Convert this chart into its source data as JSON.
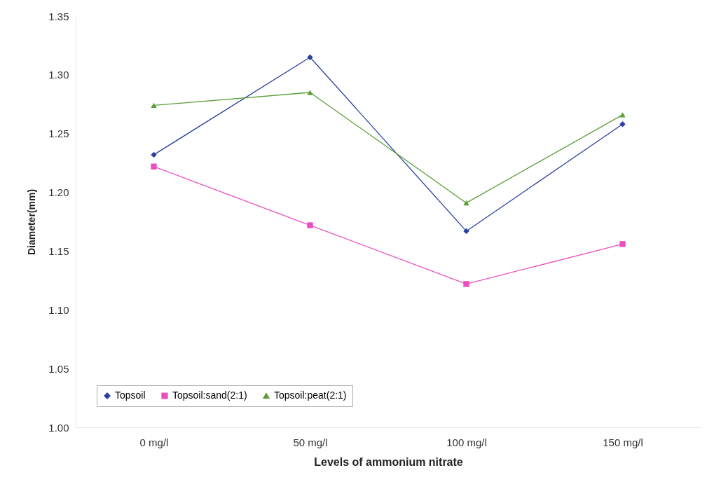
{
  "chart_data": {
    "type": "line",
    "xlabel": "Levels of ammonium nitrate",
    "ylabel": "Diameter(mm)",
    "categories": [
      "0 mg/l",
      "50 mg/l",
      "100 mg/l",
      "150 mg/l"
    ],
    "series": [
      {
        "name": "Topsoil",
        "color": "#2b3f9e",
        "marker": "diamond",
        "values": [
          1.232,
          1.315,
          1.167,
          1.258
        ]
      },
      {
        "name": "Topsoil:sand(2:1)",
        "color": "#e84fbf",
        "marker": "square",
        "values": [
          1.222,
          1.172,
          1.122,
          1.156
        ]
      },
      {
        "name": "Topsoil:peat(2:1)",
        "color": "#5c9e3a",
        "marker": "triangle",
        "values": [
          1.274,
          1.285,
          1.191,
          1.266
        ]
      }
    ],
    "ylim": [
      1.0,
      1.35
    ],
    "yticks": [
      {
        "value": 1.0,
        "label": "1.00"
      },
      1.05,
      {
        "value": 1.1,
        "label": "1.10"
      },
      1.15,
      {
        "value": 1.2,
        "label": "1.20"
      },
      1.25,
      {
        "value": 1.3,
        "label": "1.30"
      },
      1.35
    ],
    "grid": false,
    "legend": "bottom left"
  }
}
